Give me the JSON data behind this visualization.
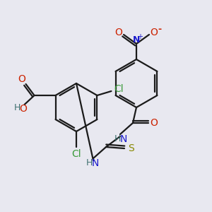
{
  "bg_color": "#e8e8f0",
  "line_color": "#1a1a1a",
  "bond_width": 1.6,
  "colors": {
    "C": "#1a1a1a",
    "N": "#1a1acc",
    "O": "#cc2200",
    "S": "#888800",
    "Cl": "#3a9a3a",
    "H": "#407070"
  }
}
